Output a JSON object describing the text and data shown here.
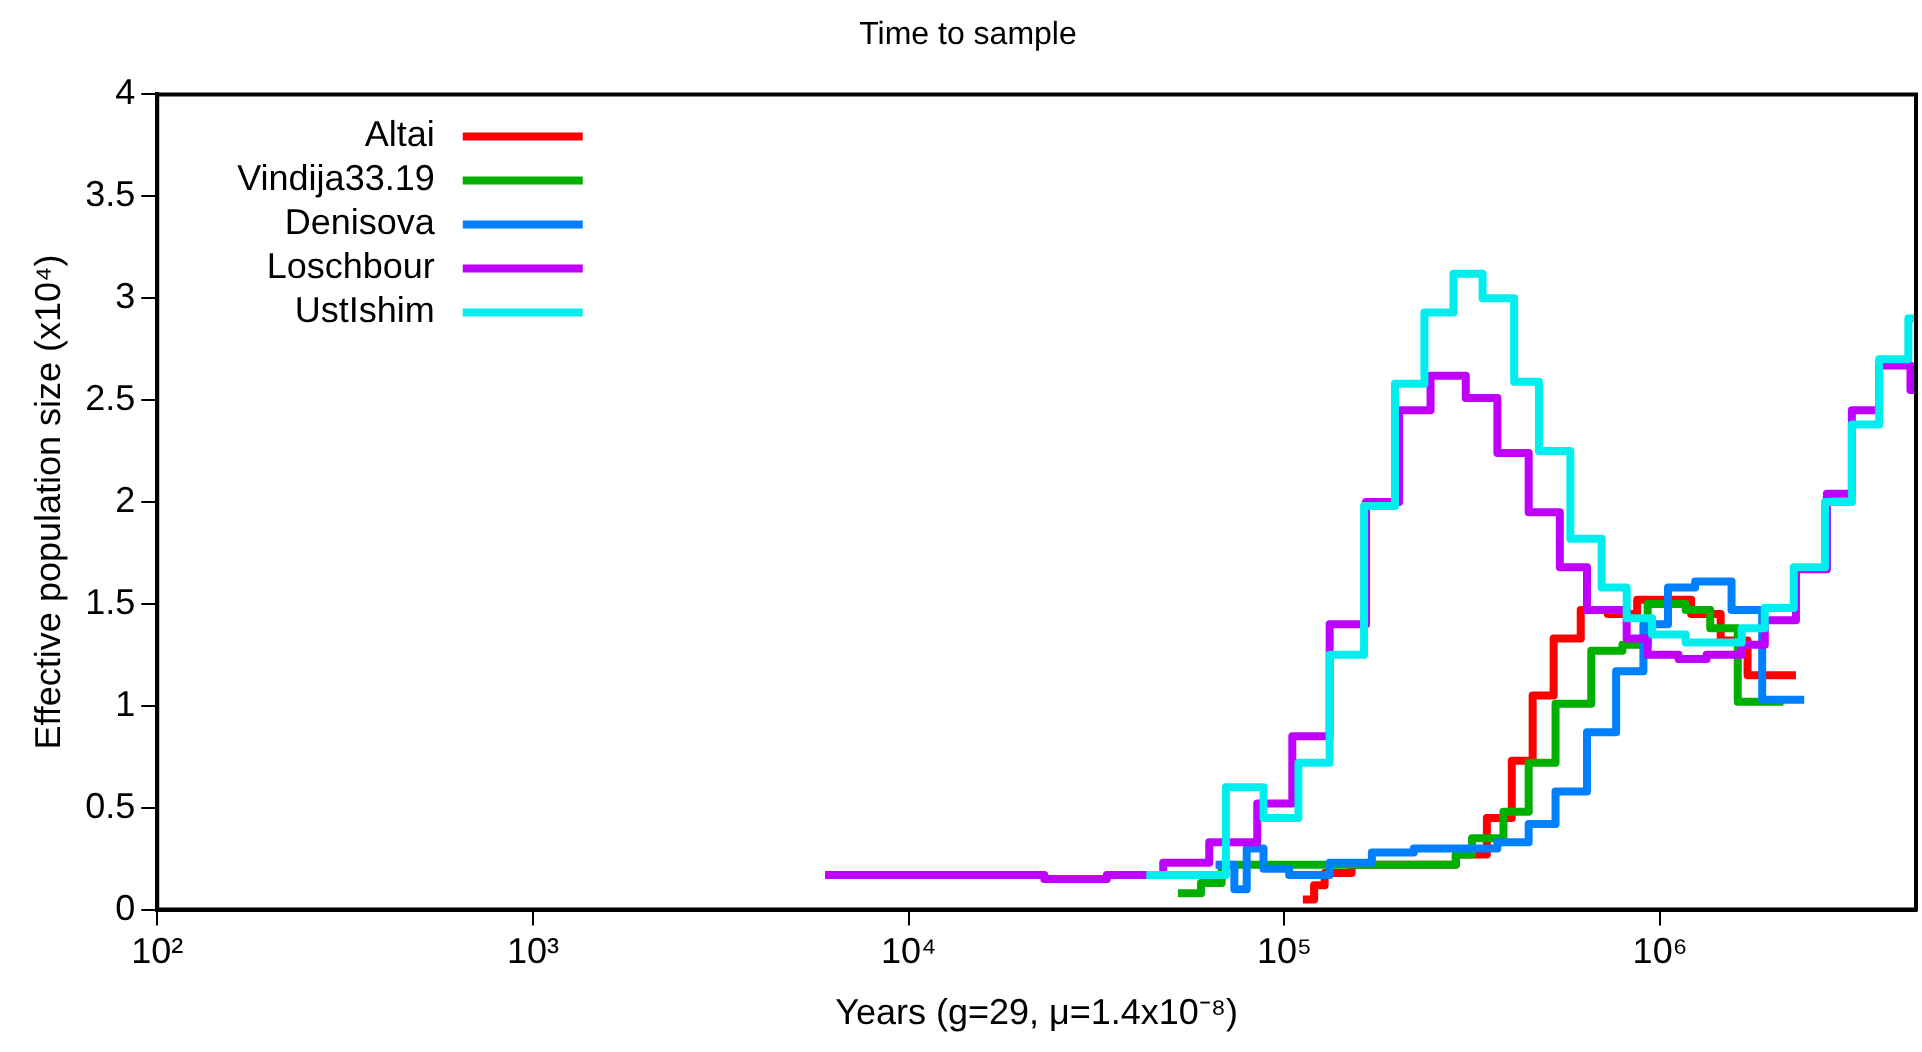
{
  "chart_data": {
    "type": "step",
    "title": "Time to sample",
    "xlabel": "Years (g=29, μ=1.4x10⁻⁸)",
    "ylabel": "Effective population size (x10⁴)",
    "log": "x",
    "xlim": [
      100,
      4800000
    ],
    "xticks": [
      {
        "value": 100,
        "label": "10²"
      },
      {
        "value": 1000,
        "label": "10³"
      },
      {
        "value": 10000,
        "label": "10⁴"
      },
      {
        "value": 100000,
        "label": "10⁵"
      },
      {
        "value": 1000000,
        "label": "10⁶"
      }
    ],
    "ylim": [
      0,
      4
    ],
    "yticks": [
      0,
      0.5,
      1,
      1.5,
      2,
      2.5,
      3,
      3.5,
      4
    ],
    "grid": false,
    "legend": "top left",
    "marker": "none",
    "line_style": "solid",
    "series": [
      {
        "name": "Altai",
        "color": "#ff0000",
        "x": [
          112000,
          120000,
          128000,
          151000,
          286000,
          346000,
          403000,
          458000,
          521000,
          615000,
          726000,
          869000,
          1210000,
          1450000,
          1710000,
          2300000
        ],
        "values": [
          0.05,
          0.12,
          0.18,
          0.22,
          0.27,
          0.45,
          0.73,
          1.05,
          1.33,
          1.47,
          1.45,
          1.52,
          1.45,
          1.32,
          1.15,
          1.15
        ]
      },
      {
        "name": "Vindija33.19",
        "color": "#00b000",
        "x": [
          52100,
          60000,
          68100,
          286000,
          316000,
          383000,
          447000,
          527000,
          656000,
          794000,
          927000,
          1170000,
          1360000,
          1610000,
          2130000
        ],
        "values": [
          0.08,
          0.13,
          0.22,
          0.27,
          0.35,
          0.48,
          0.72,
          1.01,
          1.27,
          1.3,
          1.5,
          1.47,
          1.38,
          1.02,
          1.02
        ]
      },
      {
        "name": "Denisova",
        "color": "#0080ff",
        "x": [
          65600,
          73600,
          79400,
          88000,
          103000,
          132000,
          171000,
          221000,
          286000,
          369000,
          447000,
          527000,
          639000,
          764000,
          903000,
          1050000,
          1240000,
          1550000,
          1870000,
          2420000
        ],
        "values": [
          0.22,
          0.1,
          0.3,
          0.2,
          0.17,
          0.23,
          0.28,
          0.3,
          0.3,
          0.33,
          0.42,
          0.58,
          0.87,
          1.17,
          1.4,
          1.58,
          1.61,
          1.47,
          1.03,
          1.03
        ]
      },
      {
        "name": "Loschbour",
        "color": "#c000ff",
        "x": [
          5990,
          22960,
          33700,
          47600,
          63100,
          84700,
          105000,
          132000,
          165000,
          202000,
          245000,
          304000,
          369000,
          447000,
          541000,
          639000,
          815000,
          927000,
          1120000,
          1330000,
          1650000,
          1900000,
          2300000,
          2780000,
          3240000,
          3830000,
          4640000,
          4800000
        ],
        "values": [
          0.17,
          0.15,
          0.17,
          0.23,
          0.33,
          0.52,
          0.85,
          1.4,
          2.0,
          2.45,
          2.62,
          2.51,
          2.24,
          1.95,
          1.68,
          1.47,
          1.33,
          1.25,
          1.23,
          1.25,
          1.3,
          1.42,
          1.67,
          2.04,
          2.45,
          2.67,
          2.55,
          2.55
        ]
      },
      {
        "name": "UstIshim",
        "color": "#00eeee",
        "x": [
          42900,
          69900,
          88000,
          109000,
          132000,
          163000,
          197000,
          236000,
          282000,
          337000,
          409000,
          476000,
          577000,
          699000,
          815000,
          952000,
          1170000,
          1650000,
          1900000,
          2270000,
          2750000,
          3240000,
          3830000,
          4580000,
          4800000
        ],
        "values": [
          0.17,
          0.6,
          0.45,
          0.72,
          1.25,
          1.98,
          2.58,
          2.93,
          3.12,
          3.0,
          2.59,
          2.25,
          1.82,
          1.58,
          1.43,
          1.35,
          1.31,
          1.38,
          1.48,
          1.68,
          2.0,
          2.38,
          2.7,
          2.9,
          2.9
        ]
      }
    ]
  }
}
